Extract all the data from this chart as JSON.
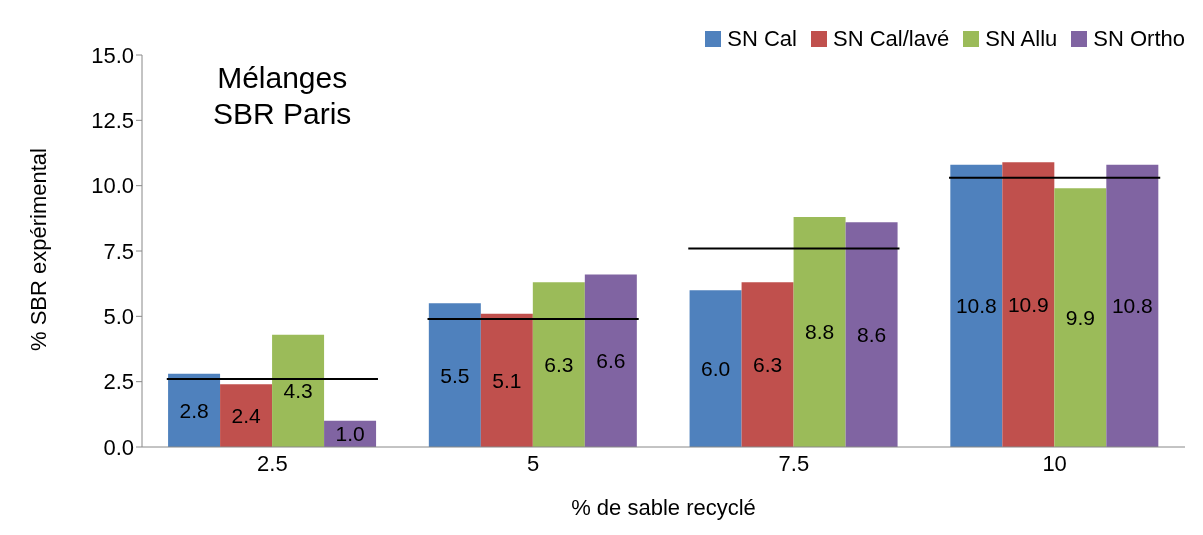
{
  "chart_data": {
    "type": "bar",
    "title": "Mélanges\nSBR Paris",
    "xlabel": "% de sable recyclé",
    "ylabel": "% SBR expérimental",
    "categories": [
      "2.5",
      "5",
      "7.5",
      "10"
    ],
    "series": [
      {
        "name": "SN Cal",
        "color": "#4f81bd",
        "values": [
          2.8,
          5.5,
          6.0,
          10.8
        ],
        "value_labels": [
          "2.8",
          "5.5",
          "6.0",
          "10.8"
        ]
      },
      {
        "name": "SN Cal/lavé",
        "color": "#c0504d",
        "values": [
          2.4,
          5.1,
          6.3,
          10.9
        ],
        "value_labels": [
          "2.4",
          "5.1",
          "6.3",
          "10.9"
        ]
      },
      {
        "name": "SN Allu",
        "color": "#9bbb59",
        "values": [
          4.3,
          6.3,
          8.8,
          9.9
        ],
        "value_labels": [
          "4.3",
          "6.3",
          "8.8",
          "9.9"
        ]
      },
      {
        "name": "SN Ortho",
        "color": "#8064a2",
        "values": [
          1.0,
          6.6,
          8.6,
          10.8
        ],
        "value_labels": [
          "1.0",
          "6.6",
          "8.6",
          "10.8"
        ]
      }
    ],
    "ref_lines": [
      {
        "axis": "y",
        "value": 2.6,
        "color": "#000000"
      },
      {
        "axis": "y",
        "value": 4.9,
        "color": "#000000"
      },
      {
        "axis": "y",
        "value": 7.6,
        "color": "#000000"
      },
      {
        "axis": "y",
        "value": 10.3,
        "color": "#000000"
      }
    ],
    "ylim": [
      0,
      15
    ],
    "yticks": [
      {
        "value": 0,
        "label": "0.0"
      },
      2.5,
      {
        "value": 5,
        "label": "5.0"
      },
      7.5,
      {
        "value": 10,
        "label": "10.0"
      },
      12.5,
      {
        "value": 15,
        "label": "15.0"
      }
    ],
    "grid": false,
    "legend": "top right"
  }
}
